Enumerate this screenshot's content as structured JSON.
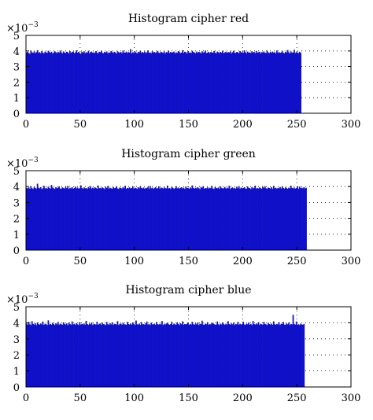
{
  "chart_data": [
    {
      "type": "bar",
      "title": "Histogram cipher red",
      "xlabel": "",
      "ylabel": "",
      "xlim": [
        0,
        300
      ],
      "ylim": [
        0,
        5
      ],
      "xticks": [
        0,
        50,
        100,
        150,
        200,
        250,
        300
      ],
      "yticks": [
        0,
        1,
        2,
        3,
        4,
        5
      ],
      "y_multiplier": "×10",
      "y_multiplier_exp": "−3",
      "bar_color": "#1010c8",
      "grid": true,
      "bins_count": 256,
      "mean_value": 3.9,
      "values": [
        3.9,
        3.95,
        3.87,
        3.82,
        4.02,
        3.91,
        3.88,
        3.97,
        3.85,
        3.93,
        4.05,
        3.89,
        3.92,
        3.86,
        3.99,
        3.9,
        3.84,
        3.96,
        3.91,
        3.87,
        4.01,
        3.93,
        3.88,
        3.95,
        3.83,
        3.9,
        3.98,
        3.92,
        3.86,
        3.94,
        3.89,
        4.03,
        3.91,
        3.85,
        3.97,
        3.9,
        3.87,
        3.95,
        3.92,
        3.84,
        3.99,
        3.88,
        3.93,
        3.96,
        3.86,
        3.91,
        4.04,
        3.89,
        3.94,
        3.87,
        3.82,
        3.95,
        3.9,
        3.98,
        3.86,
        3.92,
        3.89,
        4.01,
        3.85,
        3.93,
        3.96,
        3.88,
        3.91,
        3.87,
        3.99,
        3.9,
        3.84,
        3.95,
        3.92,
        4.02,
        3.88,
        3.86,
        3.94,
        3.9,
        3.97,
        3.85,
        3.91,
        3.89,
        4.0,
        3.93,
        3.87,
        3.95,
        3.9,
        3.83,
        3.98,
        3.92,
        3.88,
        3.94,
        3.86,
        4.03,
        3.91,
        3.89,
        3.96,
        3.87,
        3.93,
        3.9,
        4.12,
        3.85,
        3.92,
        3.88,
        3.97,
        3.9,
        3.84,
        3.95,
        3.91,
        4.01,
        3.87,
        3.93,
        3.89,
        3.96,
        3.86,
        3.92,
        4.04,
        3.88,
        3.91,
        3.85,
        3.98,
        3.9,
        3.94,
        3.87,
        3.92,
        4.0,
        3.89,
        3.86,
        3.95,
        3.91,
        3.88,
        3.97,
        3.84,
        3.93,
        3.9,
        4.02,
        3.87,
        3.94,
        3.89,
        3.92,
        3.96,
        3.85,
        3.91,
        3.88,
        3.99,
        3.93,
        3.86,
        3.9,
        4.05,
        3.88,
        3.95,
        3.92,
        3.84,
        3.97,
        3.89,
        3.91,
        3.87,
        4.01,
        3.93,
        3.9,
        3.86,
        3.96,
        3.88,
        3.94,
        3.91,
        3.85,
        3.98,
        3.9,
        3.92,
        4.03,
        3.87,
        3.89,
        3.95,
        3.86,
        3.93,
        3.91,
        3.88,
        4.0,
        3.9,
        3.84,
        3.96,
        3.92,
        3.87,
        3.94,
        3.89,
        4.02,
        3.86,
        3.91,
        3.95,
        3.88,
        3.93,
        3.9,
        3.97,
        3.85,
        3.92,
        4.01,
        3.89,
        3.87,
        3.94,
        3.91,
        3.86,
        3.99,
        3.9,
        3.93,
        3.88,
        4.04,
        3.92,
        3.85,
        3.96,
        3.89,
        3.91,
        3.87,
        3.98,
        3.9,
        3.94,
        3.86,
        4.0,
        3.88,
        3.92,
        3.95,
        3.84,
        3.93,
        3.9,
        3.97,
        3.89,
        3.87,
        4.02,
        3.91,
        3.86,
        3.94,
        3.88,
        3.96,
        3.9,
        3.92,
        3.85,
        4.03,
        3.89,
        3.93,
        3.87,
        3.91,
        3.98,
        3.88,
        3.86,
        3.95,
        3.9,
        4.06,
        3.92,
        3.84,
        3.97,
        3.89,
        3.91,
        4.08,
        3.87,
        3.93,
        3.9,
        3.86,
        3.95,
        3.88
      ]
    },
    {
      "type": "bar",
      "title": "Histogram cipher green",
      "xlabel": "",
      "ylabel": "",
      "xlim": [
        0,
        300
      ],
      "ylim": [
        0,
        5
      ],
      "xticks": [
        0,
        50,
        100,
        150,
        200,
        250,
        300
      ],
      "yticks": [
        0,
        1,
        2,
        3,
        4,
        5
      ],
      "y_multiplier": "×10",
      "y_multiplier_exp": "−3",
      "bar_color": "#1010c8",
      "grid": true,
      "bins_count": 256,
      "mean_value": 3.9,
      "values": [
        3.92,
        3.88,
        3.95,
        3.86,
        4.02,
        3.9,
        3.85,
        3.97,
        3.91,
        3.87,
        4.18,
        3.93,
        3.89,
        3.96,
        3.84,
        3.9,
        4.05,
        3.88,
        3.92,
        3.86,
        3.99,
        3.91,
        3.87,
        4.1,
        3.94,
        3.89,
        3.85,
        3.96,
        3.9,
        3.93,
        4.01,
        3.88,
        3.86,
        3.95,
        3.91,
        3.87,
        3.98,
        3.9,
        4.04,
        3.85,
        3.92,
        3.89,
        3.96,
        3.86,
        3.91,
        4.0,
        3.88,
        3.94,
        3.87,
        3.9,
        4.08,
        3.92,
        3.86,
        3.95,
        3.89,
        3.91,
        3.85,
        3.97,
        3.9,
        4.02,
        3.88,
        3.93,
        3.87,
        3.96,
        3.91,
        3.86,
        4.06,
        3.89,
        3.92,
        3.88,
        3.95,
        3.9,
        3.84,
        3.98,
        3.91,
        4.03,
        3.87,
        3.93,
        3.89,
        3.86,
        3.96,
        3.9,
        3.92,
        4.01,
        3.88,
        3.85,
        3.94,
        3.91,
        3.87,
        3.97,
        3.9,
        4.05,
        3.86,
        3.92,
        3.89,
        3.95,
        3.88,
        3.91,
        4.0,
        3.87,
        3.93,
        3.9,
        3.85,
        3.96,
        3.89,
        4.02,
        3.91,
        3.88,
        3.94,
        3.86,
        3.92,
        3.9,
        3.98,
        3.87,
        4.04,
        3.89,
        3.93,
        3.85,
        3.91,
        3.96,
        3.88,
        3.9,
        4.01,
        3.86,
        3.94,
        3.92,
        3.87,
        3.95,
        3.9,
        3.89,
        4.06,
        3.88,
        3.91,
        3.85,
        3.97,
        3.92,
        3.86,
        3.9,
        4.03,
        3.89,
        3.94,
        3.87,
        3.91,
        3.96,
        3.88,
        3.93,
        3.85,
        4.0,
        3.9,
        3.92,
        3.86,
        3.95,
        3.89,
        4.07,
        3.91,
        3.87,
        3.93,
        3.88,
        3.96,
        3.9,
        3.84,
        3.98,
        3.92,
        4.02,
        3.86,
        3.91,
        3.89,
        3.95,
        3.87,
        3.93,
        3.9,
        4.04,
        3.88,
        3.85,
        3.96,
        3.91,
        3.89,
        3.94,
        3.86,
        4.01,
        3.92,
        3.88,
        3.9,
        3.97,
        3.87,
        3.93,
        3.89,
        4.05,
        3.85,
        3.91,
        3.95,
        3.88,
        3.92,
        3.86,
        3.99,
        3.9,
        4.03,
        3.87,
        3.94,
        3.89,
        3.91,
        3.96,
        3.88,
        3.86,
        4.0,
        3.92,
        3.9,
        3.85,
        3.97,
        3.89,
        3.93,
        4.06,
        3.87,
        3.91,
        3.88,
        3.95,
        3.9,
        3.86,
        3.98,
        3.92,
        4.02,
        3.89,
        3.87,
        3.94,
        3.91,
        3.88,
        3.96,
        3.85,
        4.04,
        3.9,
        3.93,
        3.86,
        3.92,
        3.89,
        3.97,
        3.88,
        4.01,
        3.91,
        3.87,
        3.95,
        3.9,
        3.86,
        3.93,
        3.89,
        4.05,
        3.92,
        3.88,
        3.94,
        3.87,
        3.91,
        3.98,
        3.86,
        4.0,
        3.9,
        3.93,
        3.89,
        3.96,
        3.88,
        3.92
      ]
    },
    {
      "type": "bar",
      "title": "Histogram cipher blue",
      "xlabel": "",
      "ylabel": "",
      "xlim": [
        0,
        300
      ],
      "ylim": [
        0,
        5
      ],
      "xticks": [
        0,
        50,
        100,
        150,
        200,
        250,
        300
      ],
      "yticks": [
        0,
        1,
        2,
        3,
        4,
        5
      ],
      "y_multiplier": "×10",
      "y_multiplier_exp": "−3",
      "bar_color": "#1010c8",
      "grid": true,
      "bins_count": 256,
      "mean_value": 3.9,
      "values": [
        3.95,
        3.88,
        4.05,
        3.91,
        3.86,
        4.1,
        3.93,
        3.89,
        3.97,
        3.85,
        4.02,
        3.92,
        3.88,
        3.96,
        3.9,
        4.08,
        3.87,
        3.94,
        3.91,
        3.86,
        4.15,
        3.89,
        3.93,
        3.88,
        4.0,
        3.92,
        3.86,
        3.97,
        3.9,
        4.06,
        3.88,
        3.95,
        3.91,
        3.87,
        4.03,
        3.93,
        3.89,
        3.96,
        3.85,
        4.01,
        3.92,
        3.88,
        4.09,
        3.9,
        3.94,
        3.87,
        3.98,
        3.91,
        3.86,
        4.04,
        3.89,
        3.93,
        3.9,
        3.96,
        3.88,
        4.12,
        3.92,
        3.87,
        3.95,
        3.9,
        4.02,
        3.86,
        3.94,
        3.91,
        3.89,
        4.07,
        3.88,
        3.93,
        3.96,
        3.87,
        4.0,
        3.92,
        3.9,
        3.85,
        4.05,
        3.91,
        3.88,
        3.97,
        3.9,
        4.03,
        3.87,
        3.94,
        3.92,
        3.89,
        4.1,
        3.86,
        3.93,
        3.95,
        3.88,
        4.01,
        3.91,
        3.9,
        3.87,
        4.06,
        3.92,
        3.89,
        3.96,
        3.88,
        4.02,
        3.93,
        3.86,
        4.14,
        3.91,
        3.89,
        3.95,
        3.87,
        4.04,
        3.9,
        3.92,
        3.88,
        3.97,
        4.08,
        3.89,
        3.93,
        3.86,
        4.01,
        3.91,
        3.9,
        3.95,
        3.87,
        4.05,
        3.92,
        3.88,
        3.94,
        3.9,
        4.11,
        3.86,
        3.93,
        3.89,
        3.96,
        4.0,
        3.91,
        3.88,
        3.92,
        4.07,
        3.87,
        3.95,
        3.9,
        3.89,
        4.03,
        3.93,
        3.86,
        3.97,
        3.91,
        4.09,
        3.88,
        3.92,
        3.9,
        3.94,
        4.01,
        3.87,
        3.93,
        3.89,
        4.06,
        3.91,
        3.88,
        3.96,
        3.9,
        4.02,
        3.86,
        3.94,
        3.92,
        4.13,
        3.89,
        3.88,
        3.95,
        3.91,
        4.04,
        3.87,
        3.93,
        3.9,
        3.97,
        4.0,
        3.92,
        3.88,
        3.89,
        4.08,
        3.91,
        3.86,
        3.95,
        3.9,
        4.03,
        3.93,
        3.87,
        3.94,
        3.89,
        4.1,
        3.92,
        3.88,
        3.96,
        3.91,
        4.01,
        3.86,
        3.93,
        3.9,
        4.05,
        3.88,
        3.94,
        3.89,
        3.92,
        4.07,
        3.9,
        3.87,
        3.95,
        3.91,
        4.02,
        3.88,
        3.93,
        3.86,
        4.11,
        3.92,
        3.89,
        3.96,
        3.9,
        4.04,
        3.87,
        3.94,
        3.91,
        3.88,
        4.06,
        3.93,
        3.9,
        3.86,
        4.0,
        3.92,
        3.89,
        3.95,
        3.87,
        4.09,
        3.91,
        3.88,
        3.93,
        3.9,
        4.03,
        3.86,
        3.94,
        3.92,
        4.05,
        3.89,
        3.88,
        3.96,
        3.91,
        4.01,
        3.87,
        3.93,
        3.9,
        4.5,
        3.92,
        3.89,
        4.08,
        3.88,
        3.91,
        3.86,
        3.95,
        3.9,
        3.87,
        3.93
      ]
    }
  ]
}
